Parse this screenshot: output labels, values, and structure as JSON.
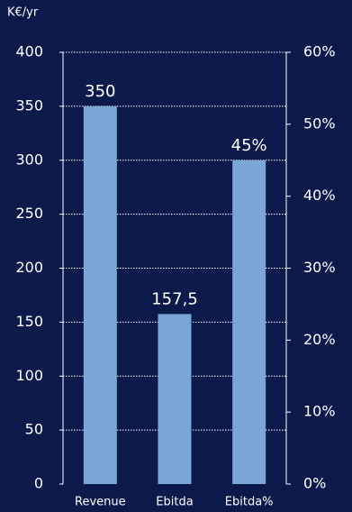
{
  "chart_data": {
    "type": "bar",
    "ylabel": "K€/yr",
    "categories": [
      "Revenue",
      "Ebitda",
      "Ebitda%"
    ],
    "series": [
      {
        "color": "#7ca6d8",
        "values": [
          350,
          157.5,
          null
        ],
        "value_labels": [
          "350",
          "157,5",
          null
        ]
      },
      {
        "color": "#7ca6d8",
        "axis": "y2",
        "values": [
          null,
          null,
          45
        ],
        "value_labels": [
          null,
          null,
          "45%"
        ]
      }
    ],
    "ylim": [
      0,
      400
    ],
    "yticks": [
      0,
      50,
      100,
      150,
      200,
      250,
      300,
      350,
      400
    ],
    "y2lim": [
      0,
      60
    ],
    "y2ticks": [
      {
        "value": 0,
        "label": "0%"
      },
      {
        "value": 10,
        "label": "10%"
      },
      {
        "value": 20,
        "label": "20%"
      },
      {
        "value": 30,
        "label": "30%"
      },
      {
        "value": 40,
        "label": "40%"
      },
      {
        "value": 50,
        "label": "50%"
      },
      {
        "value": 60,
        "label": "60%"
      }
    ],
    "grid": true
  }
}
